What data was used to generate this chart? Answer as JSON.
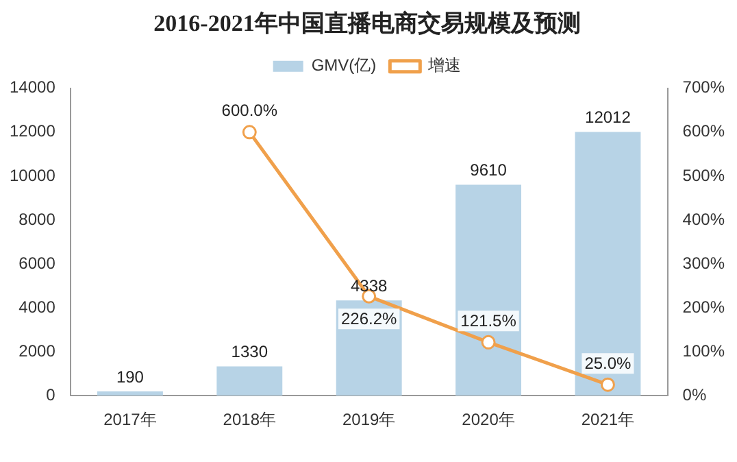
{
  "chart_data": {
    "type": "bar",
    "title": "2016-2021年中国直播电商交易规模及预测",
    "categories": [
      "2017年",
      "2018年",
      "2019年",
      "2020年",
      "2021年"
    ],
    "series": [
      {
        "name": "GMV(亿)",
        "color": "#b7d3e6",
        "values": [
          190,
          1330,
          4338,
          9610,
          12012
        ],
        "value_labels": [
          "190",
          "1330",
          "4338",
          "9610",
          "12012"
        ]
      },
      {
        "name": "增速",
        "type": "line",
        "axis": "y2",
        "color": "#f0a04b",
        "marker": "circle",
        "values": [
          null,
          600.0,
          226.2,
          121.5,
          25.0
        ],
        "value_labels": [
          null,
          "600.0%",
          "226.2%",
          "121.5%",
          "25.0%"
        ]
      }
    ],
    "ylim": [
      0,
      14000
    ],
    "yticks": [
      0,
      2000,
      4000,
      6000,
      8000,
      10000,
      12000,
      14000
    ],
    "y2lim": [
      0,
      700
    ],
    "y2ticks": [
      {
        "value": 0,
        "label": "0%"
      },
      {
        "value": 100,
        "label": "100%"
      },
      {
        "value": 200,
        "label": "200%"
      },
      {
        "value": 300,
        "label": "300%"
      },
      {
        "value": 400,
        "label": "400%"
      },
      {
        "value": 500,
        "label": "500%"
      },
      {
        "value": 600,
        "label": "600%"
      },
      {
        "value": 700,
        "label": "700%"
      }
    ],
    "legend": "top",
    "grid": false
  }
}
